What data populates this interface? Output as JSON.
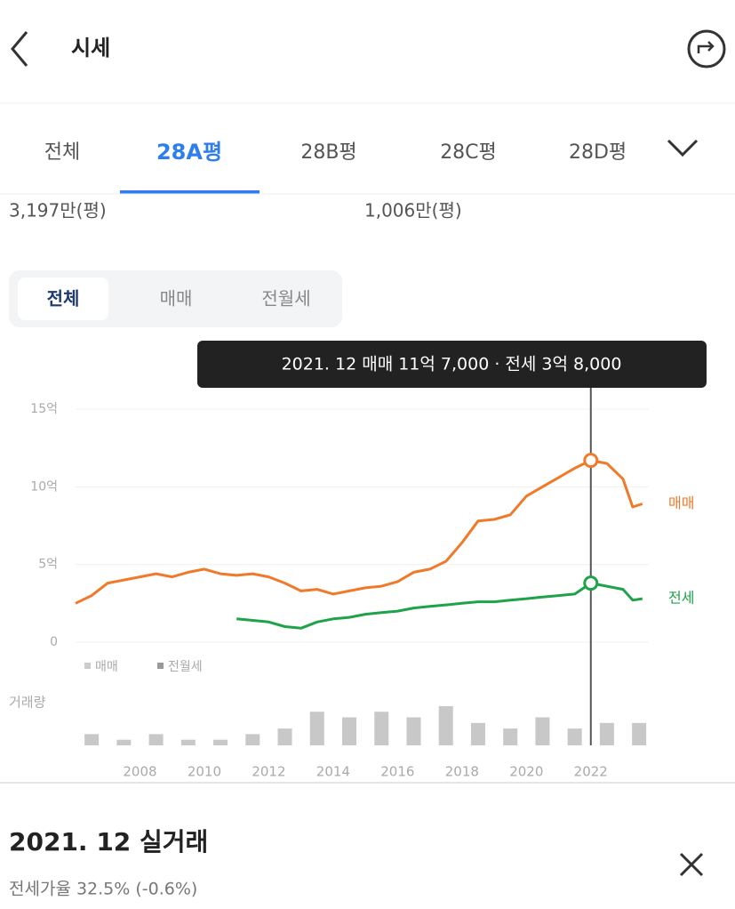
{
  "header": {
    "title": "시세"
  },
  "tabs": [
    "전체",
    "28A평",
    "28B평",
    "28C평",
    "28D평"
  ],
  "stats": [
    "3,197만(평)",
    "1,006만(평)"
  ],
  "filters": [
    "전체",
    "매매",
    "전월세"
  ],
  "chart_data": [
    {
      "type": "line",
      "tooltip": "2021. 12 매매 11억 7,000 · 전세 3억 8,000",
      "x": [
        2006,
        2006.5,
        2007,
        2007.5,
        2008,
        2008.5,
        2009,
        2009.5,
        2010,
        2010.5,
        2011,
        2011.5,
        2012,
        2012.5,
        2013,
        2013.5,
        2014,
        2014.5,
        2015,
        2015.5,
        2016,
        2016.5,
        2017,
        2017.5,
        2018,
        2018.5,
        2019,
        2019.5,
        2020,
        2020.5,
        2021,
        2021.5,
        2022,
        2022.5,
        2023,
        2023.3,
        2023.6
      ],
      "series": [
        {
          "name": "매매",
          "color": "#f07a2a",
          "values": [
            2.5,
            3.0,
            3.8,
            4.0,
            4.2,
            4.4,
            4.2,
            4.5,
            4.7,
            4.4,
            4.3,
            4.4,
            4.2,
            3.8,
            3.3,
            3.4,
            3.1,
            3.3,
            3.5,
            3.6,
            3.9,
            4.5,
            4.7,
            5.2,
            6.4,
            7.8,
            7.9,
            8.2,
            9.4,
            10.0,
            10.6,
            11.2,
            11.7,
            11.5,
            10.5,
            8.7,
            8.9
          ]
        },
        {
          "name": "전세",
          "color": "#1fa34a",
          "values": [
            null,
            null,
            null,
            null,
            null,
            null,
            null,
            null,
            null,
            null,
            1.5,
            1.4,
            1.3,
            1.0,
            0.9,
            1.3,
            1.5,
            1.6,
            1.8,
            1.9,
            2.0,
            2.2,
            2.3,
            2.4,
            2.5,
            2.6,
            2.6,
            2.7,
            2.8,
            2.9,
            3.0,
            3.1,
            3.8,
            3.6,
            3.4,
            2.7,
            2.8
          ]
        }
      ],
      "legend": [
        "매매",
        "전월세"
      ],
      "xlim": [
        2006,
        2023.8
      ],
      "xticks": [
        2008,
        2010,
        2012,
        2014,
        2016,
        2018,
        2020,
        2022
      ],
      "ylim": [
        0,
        15
      ],
      "yticks": [
        0,
        {
          "value": 5,
          "label": "5억"
        },
        {
          "value": 10,
          "label": "10억"
        },
        {
          "value": 15,
          "label": "15억"
        }
      ],
      "grid": true
    },
    {
      "type": "bar",
      "title": "거래량",
      "color": "#c8c8c8",
      "x": [
        2006,
        2007,
        2008,
        2009,
        2010,
        2011,
        2012,
        2013,
        2014,
        2015,
        2016,
        2017,
        2018,
        2019,
        2020,
        2021,
        2022,
        2023
      ],
      "values": [
        2,
        1,
        2,
        1,
        1,
        2,
        3,
        6,
        5,
        6,
        5,
        7,
        4,
        3,
        5,
        3,
        4,
        4
      ],
      "ylim": [
        0,
        10
      ]
    }
  ],
  "detail": {
    "title": "2021. 12 실거래",
    "subtitle": "전세가율 32.5% (-0.6%)"
  }
}
